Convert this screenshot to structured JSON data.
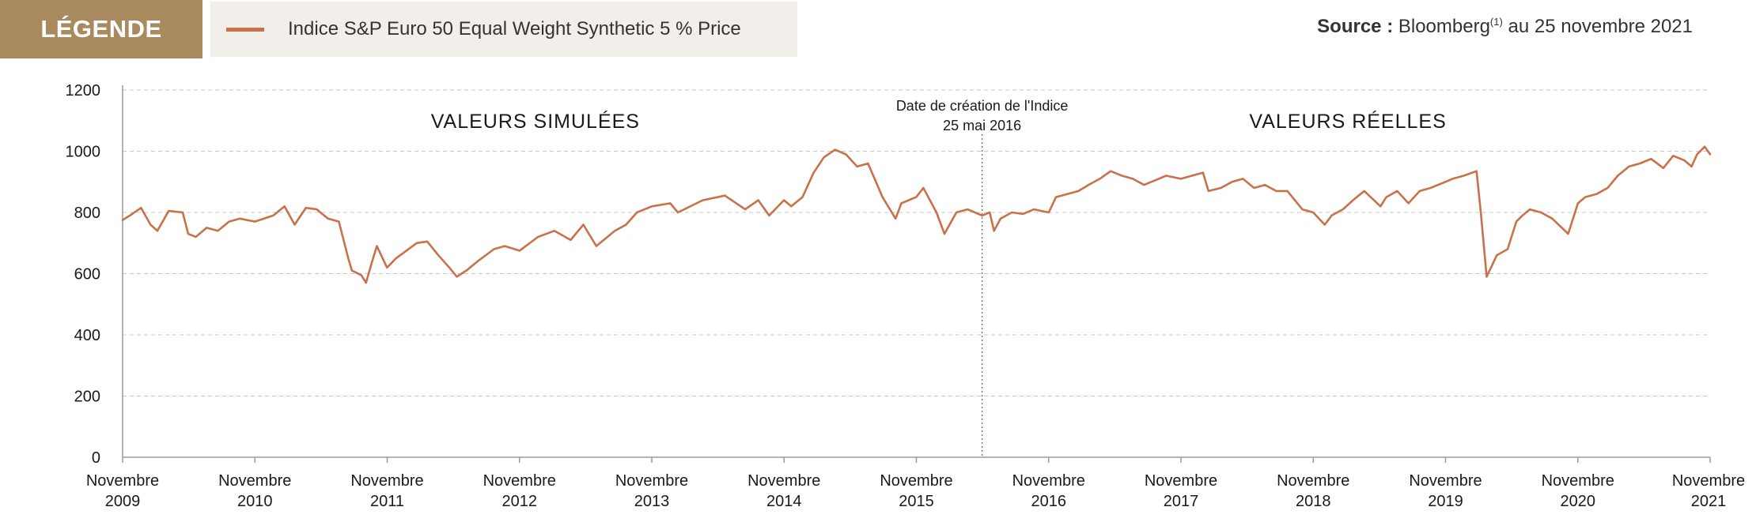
{
  "legend": {
    "tag": "LÉGENDE",
    "series_label": "Indice S&P Euro 50 Equal Weight Synthetic 5 % Price",
    "series_color": "#c8714a"
  },
  "source": {
    "label": "Source :",
    "text": "Bloomberg",
    "sup": "(1)",
    "date": "au 25 novembre 2021"
  },
  "chart_data": {
    "type": "line",
    "ylim": [
      0,
      1200
    ],
    "yticks": [
      0,
      200,
      400,
      600,
      800,
      1000,
      1200
    ],
    "grid": true,
    "xlim": [
      "2009-11-25",
      "2021-11-25"
    ],
    "xticks": [
      {
        "month": "Novembre",
        "year": "2009"
      },
      {
        "month": "Novembre",
        "year": "2010"
      },
      {
        "month": "Novembre",
        "year": "2011"
      },
      {
        "month": "Novembre",
        "year": "2012"
      },
      {
        "month": "Novembre",
        "year": "2013"
      },
      {
        "month": "Novembre",
        "year": "2014"
      },
      {
        "month": "Novembre",
        "year": "2015"
      },
      {
        "month": "Novembre",
        "year": "2016"
      },
      {
        "month": "Novembre",
        "year": "2017"
      },
      {
        "month": "Novembre",
        "year": "2018"
      },
      {
        "month": "Novembre",
        "year": "2019"
      },
      {
        "month": "Novembre",
        "year": "2020"
      },
      {
        "month": "Novembre",
        "year": "2021"
      }
    ],
    "regions": {
      "left": "VALEURS SIMULÉES",
      "right": "VALEURS RÉELLES"
    },
    "annotation": {
      "date": "2016-05-25",
      "line1": "Date de création de l'Indice",
      "line2": "25 mai 2016"
    },
    "series": [
      {
        "name": "Indice S&P Euro 50 Equal Weight Synthetic 5 % Price",
        "color": "#c8714a",
        "points": [
          [
            "2009-11-25",
            775
          ],
          [
            "2009-12-15",
            790
          ],
          [
            "2010-01-15",
            815
          ],
          [
            "2010-02-10",
            760
          ],
          [
            "2010-03-01",
            740
          ],
          [
            "2010-04-01",
            805
          ],
          [
            "2010-05-10",
            800
          ],
          [
            "2010-05-25",
            730
          ],
          [
            "2010-06-15",
            720
          ],
          [
            "2010-07-15",
            750
          ],
          [
            "2010-08-15",
            740
          ],
          [
            "2010-09-15",
            770
          ],
          [
            "2010-10-15",
            780
          ],
          [
            "2010-11-25",
            770
          ],
          [
            "2011-01-15",
            790
          ],
          [
            "2011-02-15",
            820
          ],
          [
            "2011-03-15",
            760
          ],
          [
            "2011-04-15",
            815
          ],
          [
            "2011-05-15",
            810
          ],
          [
            "2011-06-15",
            780
          ],
          [
            "2011-07-15",
            770
          ],
          [
            "2011-08-10",
            650
          ],
          [
            "2011-08-20",
            610
          ],
          [
            "2011-09-15",
            595
          ],
          [
            "2011-09-28",
            570
          ],
          [
            "2011-10-15",
            640
          ],
          [
            "2011-10-28",
            690
          ],
          [
            "2011-11-25",
            620
          ],
          [
            "2011-12-20",
            650
          ],
          [
            "2012-02-15",
            700
          ],
          [
            "2012-03-15",
            705
          ],
          [
            "2012-04-15",
            660
          ],
          [
            "2012-05-15",
            620
          ],
          [
            "2012-06-05",
            590
          ],
          [
            "2012-07-01",
            610
          ],
          [
            "2012-08-01",
            640
          ],
          [
            "2012-09-15",
            680
          ],
          [
            "2012-10-15",
            690
          ],
          [
            "2012-11-25",
            675
          ],
          [
            "2013-01-15",
            720
          ],
          [
            "2013-03-01",
            740
          ],
          [
            "2013-04-15",
            710
          ],
          [
            "2013-05-20",
            760
          ],
          [
            "2013-06-25",
            690
          ],
          [
            "2013-08-15",
            740
          ],
          [
            "2013-09-15",
            760
          ],
          [
            "2013-10-15",
            800
          ],
          [
            "2013-11-25",
            820
          ],
          [
            "2014-01-15",
            830
          ],
          [
            "2014-02-05",
            800
          ],
          [
            "2014-04-15",
            840
          ],
          [
            "2014-06-15",
            855
          ],
          [
            "2014-08-10",
            810
          ],
          [
            "2014-09-15",
            840
          ],
          [
            "2014-10-15",
            790
          ],
          [
            "2014-11-25",
            840
          ],
          [
            "2014-12-15",
            820
          ],
          [
            "2015-01-15",
            850
          ],
          [
            "2015-02-15",
            930
          ],
          [
            "2015-03-15",
            980
          ],
          [
            "2015-04-15",
            1005
          ],
          [
            "2015-05-15",
            990
          ],
          [
            "2015-06-15",
            950
          ],
          [
            "2015-07-15",
            960
          ],
          [
            "2015-08-24",
            850
          ],
          [
            "2015-09-29",
            780
          ],
          [
            "2015-10-15",
            830
          ],
          [
            "2015-11-25",
            850
          ],
          [
            "2015-12-15",
            880
          ],
          [
            "2016-01-20",
            800
          ],
          [
            "2016-02-11",
            730
          ],
          [
            "2016-03-15",
            800
          ],
          [
            "2016-04-15",
            810
          ],
          [
            "2016-05-25",
            790
          ],
          [
            "2016-06-15",
            800
          ],
          [
            "2016-06-27",
            740
          ],
          [
            "2016-07-15",
            780
          ],
          [
            "2016-08-15",
            800
          ],
          [
            "2016-09-15",
            795
          ],
          [
            "2016-10-15",
            810
          ],
          [
            "2016-11-25",
            800
          ],
          [
            "2016-12-15",
            850
          ],
          [
            "2017-01-15",
            860
          ],
          [
            "2017-02-15",
            870
          ],
          [
            "2017-03-15",
            890
          ],
          [
            "2017-04-15",
            910
          ],
          [
            "2017-05-15",
            935
          ],
          [
            "2017-06-15",
            920
          ],
          [
            "2017-07-15",
            910
          ],
          [
            "2017-08-15",
            890
          ],
          [
            "2017-09-15",
            905
          ],
          [
            "2017-10-15",
            920
          ],
          [
            "2017-11-25",
            910
          ],
          [
            "2018-01-25",
            930
          ],
          [
            "2018-02-09",
            870
          ],
          [
            "2018-03-15",
            880
          ],
          [
            "2018-04-15",
            900
          ],
          [
            "2018-05-15",
            910
          ],
          [
            "2018-06-15",
            880
          ],
          [
            "2018-07-15",
            890
          ],
          [
            "2018-08-15",
            870
          ],
          [
            "2018-09-15",
            870
          ],
          [
            "2018-10-26",
            810
          ],
          [
            "2018-11-25",
            800
          ],
          [
            "2018-12-27",
            760
          ],
          [
            "2019-01-15",
            790
          ],
          [
            "2019-02-15",
            810
          ],
          [
            "2019-03-15",
            840
          ],
          [
            "2019-04-15",
            870
          ],
          [
            "2019-05-30",
            820
          ],
          [
            "2019-06-15",
            850
          ],
          [
            "2019-07-15",
            870
          ],
          [
            "2019-08-15",
            830
          ],
          [
            "2019-09-15",
            870
          ],
          [
            "2019-10-15",
            880
          ],
          [
            "2019-11-25",
            900
          ],
          [
            "2019-12-15",
            910
          ],
          [
            "2020-01-15",
            920
          ],
          [
            "2020-02-19",
            935
          ],
          [
            "2020-03-02",
            800
          ],
          [
            "2020-03-18",
            590
          ],
          [
            "2020-04-15",
            660
          ],
          [
            "2020-05-15",
            680
          ],
          [
            "2020-06-08",
            770
          ],
          [
            "2020-06-25",
            790
          ],
          [
            "2020-07-15",
            810
          ],
          [
            "2020-08-15",
            800
          ],
          [
            "2020-09-15",
            780
          ],
          [
            "2020-10-29",
            730
          ],
          [
            "2020-11-25",
            830
          ],
          [
            "2020-12-15",
            850
          ],
          [
            "2021-01-15",
            860
          ],
          [
            "2021-02-15",
            880
          ],
          [
            "2021-03-15",
            920
          ],
          [
            "2021-04-15",
            950
          ],
          [
            "2021-05-15",
            960
          ],
          [
            "2021-06-15",
            975
          ],
          [
            "2021-07-19",
            945
          ],
          [
            "2021-08-15",
            985
          ],
          [
            "2021-09-15",
            970
          ],
          [
            "2021-10-05",
            950
          ],
          [
            "2021-10-20",
            990
          ],
          [
            "2021-11-10",
            1015
          ],
          [
            "2021-11-25",
            990
          ]
        ]
      }
    ]
  }
}
